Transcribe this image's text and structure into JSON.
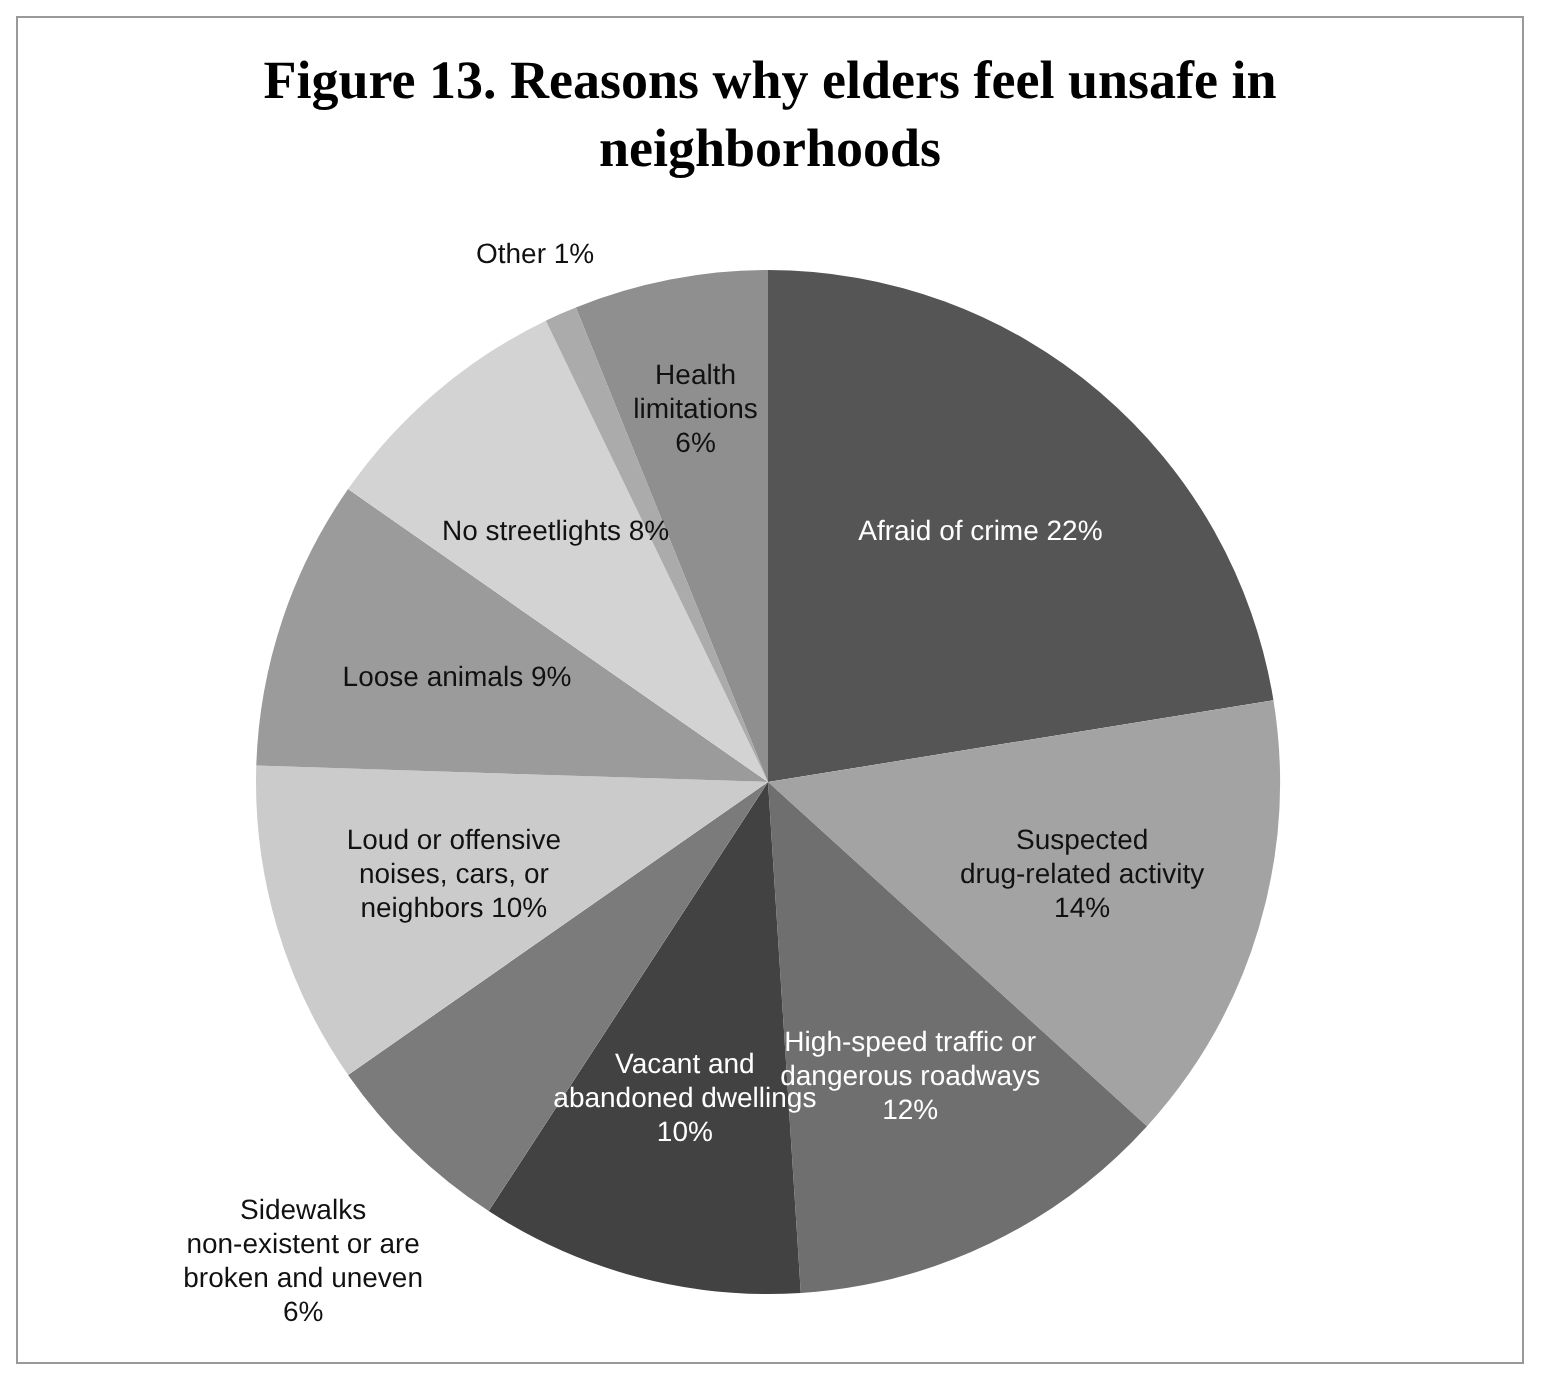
{
  "chart_data": {
    "type": "pie",
    "title": "Figure 13. Reasons why elders feel unsafe in neighborhoods",
    "categories": [
      "Afraid of crime",
      "Suspected drug-related activity",
      "High-speed traffic or dangerous roadways",
      "Vacant and abandoned dwellings",
      "Sidewalks non-existent or are broken and uneven",
      "Loud or offensive noises, cars, or neighbors",
      "Loose animals",
      "No streetlights",
      "Other",
      "Health limitations"
    ],
    "values": [
      22,
      14,
      12,
      10,
      6,
      10,
      9,
      8,
      1,
      6
    ],
    "value_labels": [
      "22%",
      "14%",
      "12%",
      "10%",
      "6%",
      "10%",
      "9%",
      "8%",
      "1%",
      "6%"
    ],
    "colors": [
      "#555555",
      "#a3a3a3",
      "#6f6f6f",
      "#424242",
      "#7b7b7b",
      "#cbcbcb",
      "#9b9b9b",
      "#d3d3d3",
      "#ababab",
      "#8f8f8f"
    ],
    "legend": false
  }
}
